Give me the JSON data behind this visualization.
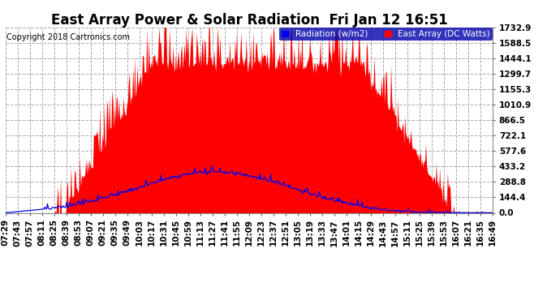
{
  "title": "East Array Power & Solar Radiation  Fri Jan 12 16:51",
  "copyright": "Copyright 2018 Cartronics.com",
  "legend_radiation": "Radiation (w/m2)",
  "legend_east_array": "East Array (DC Watts)",
  "background_color": "#ffffff",
  "plot_bg_color": "#ffffff",
  "grid_color": "#aaaaaa",
  "radiation_color": "#0000ee",
  "east_array_color": "#ff0000",
  "east_array_fill": "#ff0000",
  "yticks": [
    0.0,
    144.4,
    288.8,
    433.2,
    577.6,
    722.1,
    866.5,
    1010.9,
    1155.3,
    1299.7,
    1444.1,
    1588.5,
    1732.9
  ],
  "ymax": 1732.9,
  "title_fontsize": 12,
  "tick_fontsize": 7.5,
  "legend_fontsize": 7.5,
  "copyright_fontsize": 7,
  "xtick_labels": [
    "07:29",
    "07:43",
    "07:57",
    "08:11",
    "08:25",
    "08:39",
    "08:53",
    "09:07",
    "09:21",
    "09:35",
    "09:49",
    "10:03",
    "10:17",
    "10:31",
    "10:45",
    "10:59",
    "11:13",
    "11:27",
    "11:41",
    "11:55",
    "12:09",
    "12:23",
    "12:37",
    "12:51",
    "13:05",
    "13:19",
    "13:33",
    "13:47",
    "14:01",
    "14:15",
    "14:29",
    "14:43",
    "14:57",
    "15:11",
    "15:25",
    "15:39",
    "15:53",
    "16:07",
    "16:21",
    "16:35",
    "16:49"
  ]
}
